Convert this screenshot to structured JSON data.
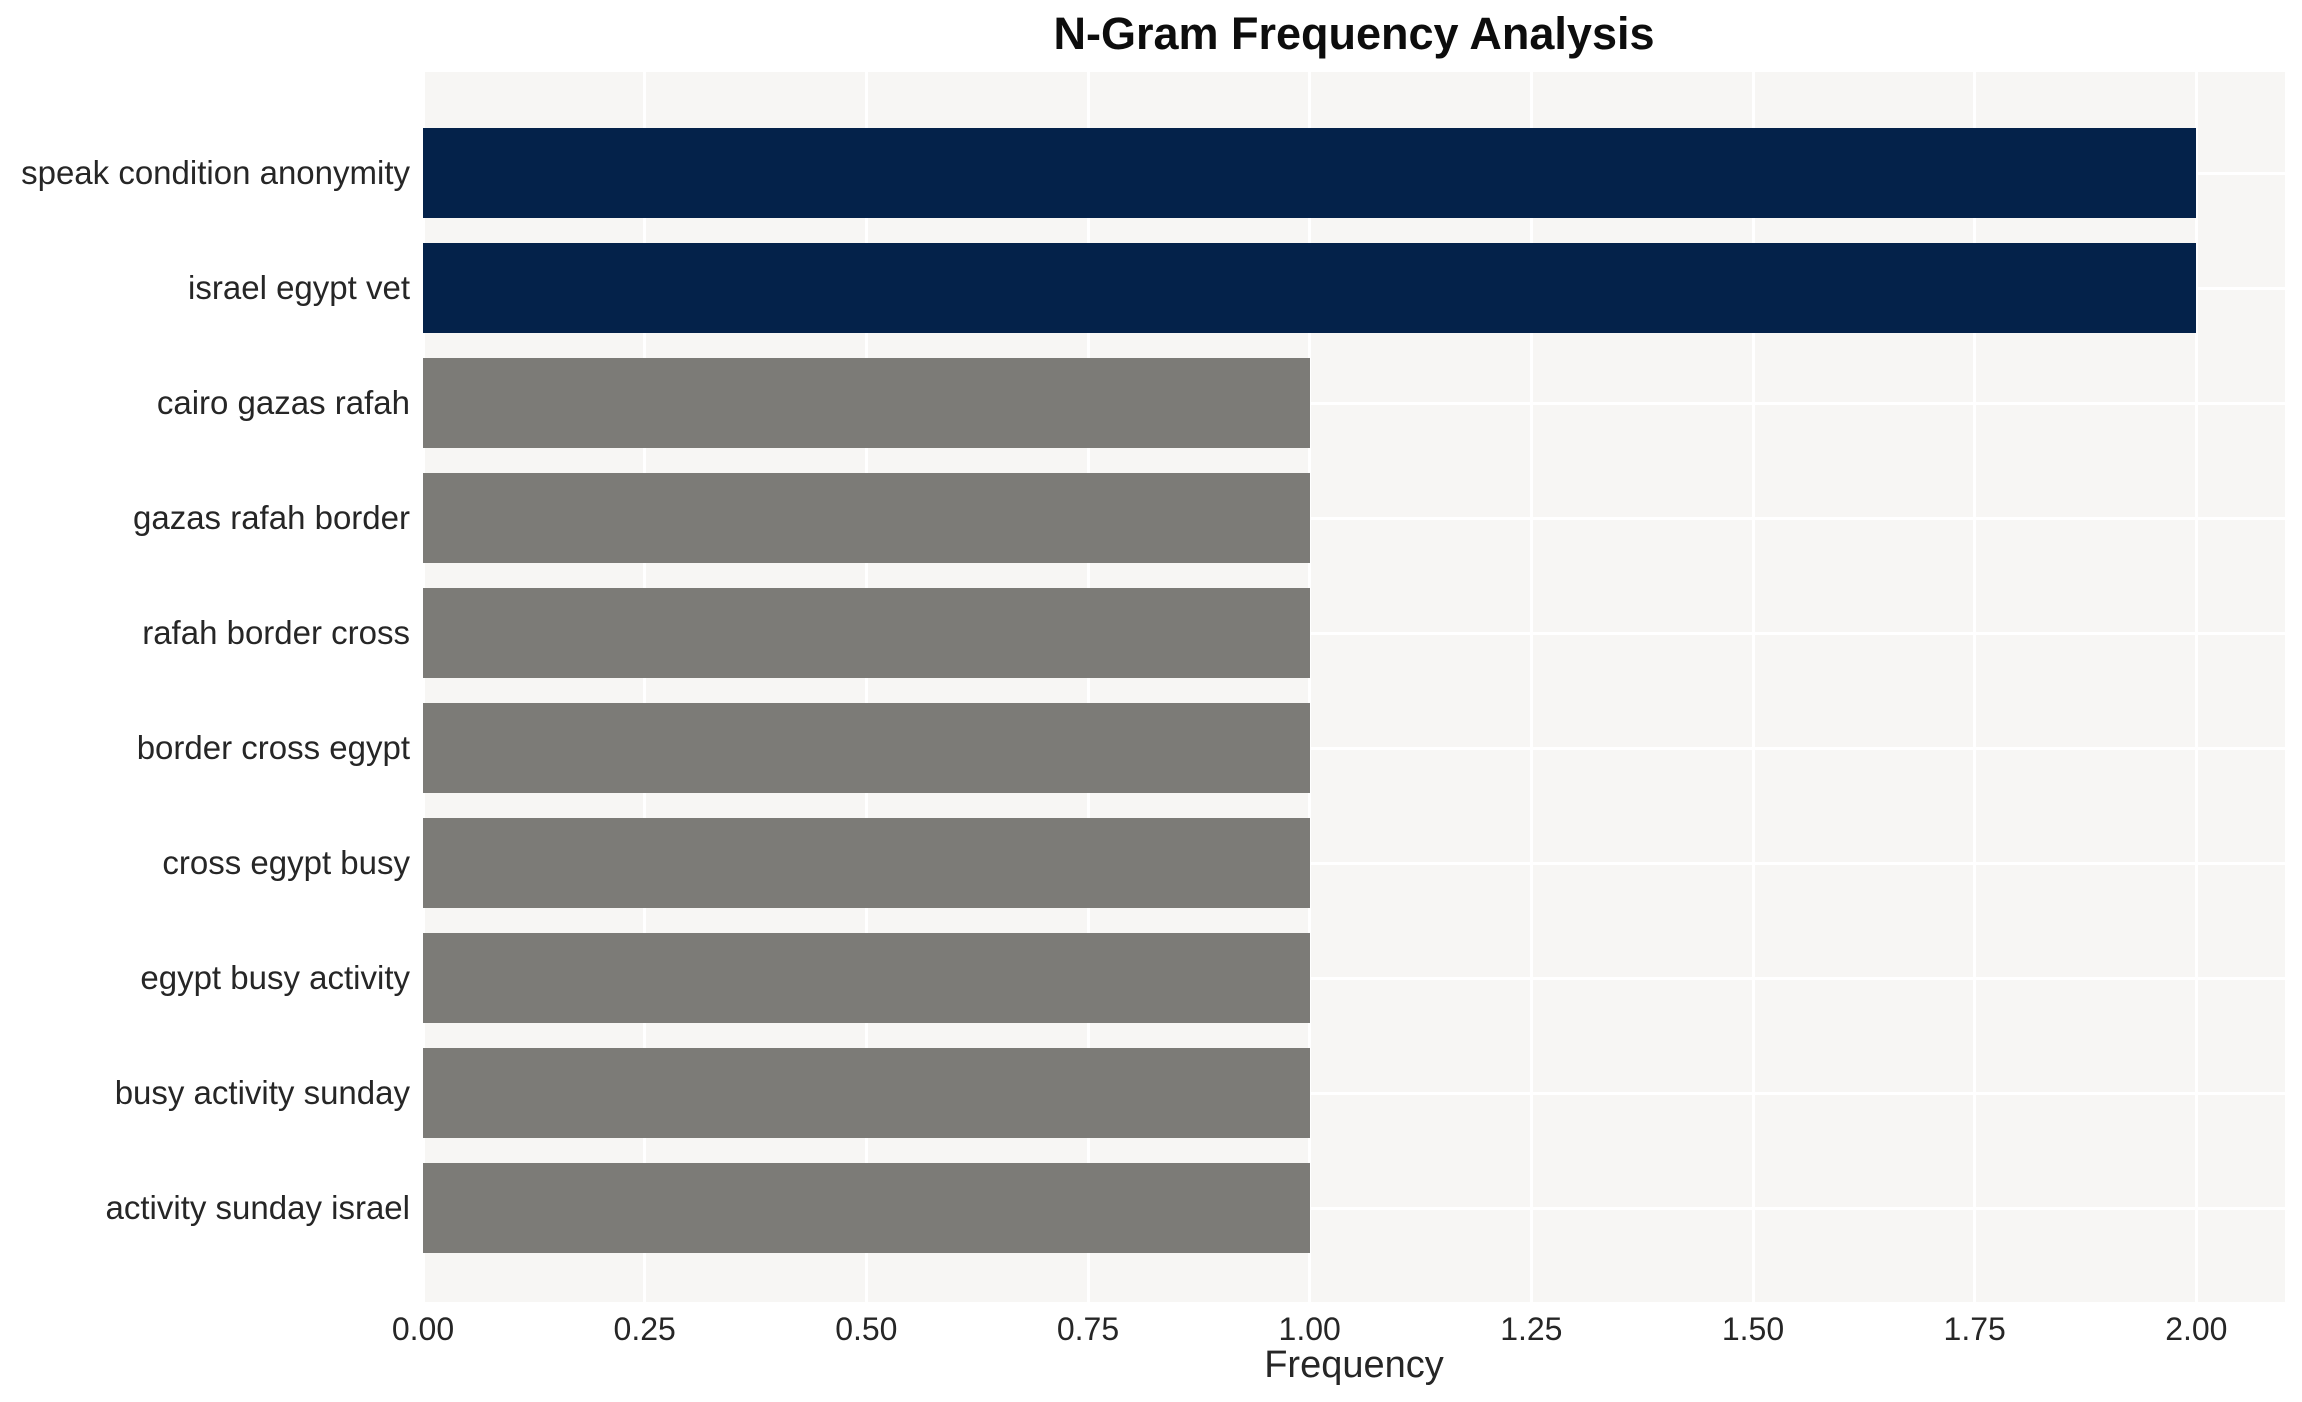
{
  "title": "N-Gram Frequency Analysis",
  "chart_data": {
    "type": "bar",
    "orientation": "horizontal",
    "title": "N-Gram Frequency Analysis",
    "xlabel": "Frequency",
    "ylabel": "",
    "categories": [
      "speak condition anonymity",
      "israel egypt vet",
      "cairo gazas rafah",
      "gazas rafah border",
      "rafah border cross",
      "border cross egypt",
      "cross egypt busy",
      "egypt busy activity",
      "busy activity sunday",
      "activity sunday israel"
    ],
    "values": [
      2,
      2,
      1,
      1,
      1,
      1,
      1,
      1,
      1,
      1
    ],
    "bar_colors": [
      "#04224a",
      "#04224a",
      "#7c7b77",
      "#7c7b77",
      "#7c7b77",
      "#7c7b77",
      "#7c7b77",
      "#7c7b77",
      "#7c7b77",
      "#7c7b77"
    ],
    "xlim": [
      0,
      2.1
    ],
    "x_ticks": [
      {
        "value": 0.0,
        "label": "0.00"
      },
      {
        "value": 0.25,
        "label": "0.25"
      },
      {
        "value": 0.5,
        "label": "0.50"
      },
      {
        "value": 0.75,
        "label": "0.75"
      },
      {
        "value": 1.0,
        "label": "1.00"
      },
      {
        "value": 1.25,
        "label": "1.25"
      },
      {
        "value": 1.5,
        "label": "1.50"
      },
      {
        "value": 1.75,
        "label": "1.75"
      },
      {
        "value": 2.0,
        "label": "2.00"
      }
    ],
    "grid": "white vertical lines at x ticks and horizontal lines at category centers over light-gray plot background",
    "legend": null
  },
  "colors": {
    "highlight_bar": "#04224a",
    "default_bar": "#7c7b77",
    "plot_background": "#f7f6f4",
    "gridline": "#ffffff",
    "tick_text": "#262626",
    "title_text": "#0d0d0d"
  }
}
